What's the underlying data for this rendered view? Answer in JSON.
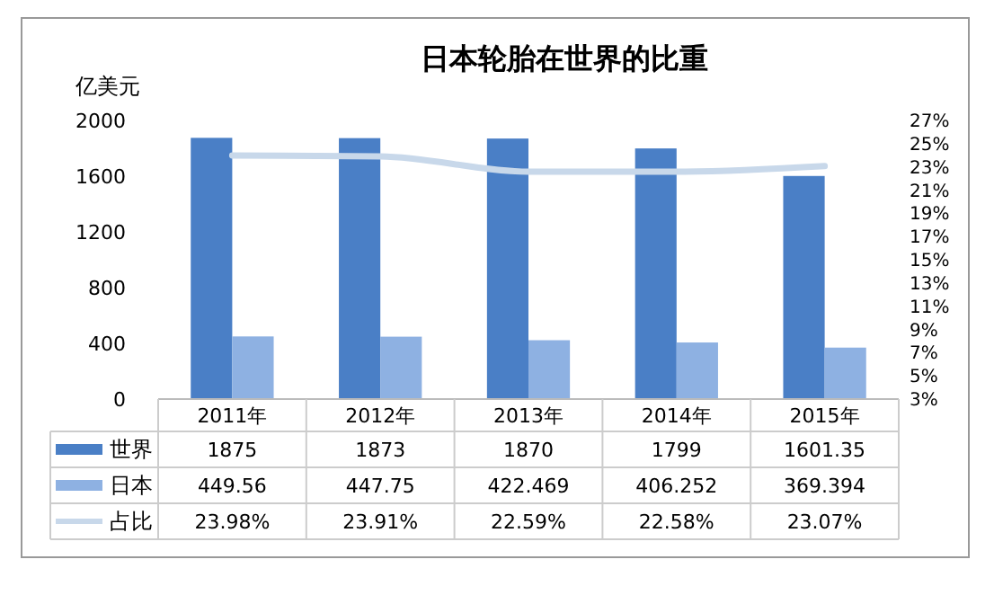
{
  "chart_data": {
    "type": "bar",
    "title": "日本轮胎在世界的比重",
    "ylabel": "亿美元",
    "categories": [
      "2011年",
      "2012年",
      "2013年",
      "2014年",
      "2015年"
    ],
    "series": [
      {
        "name": "世界",
        "color": "#4a7fc6",
        "values": [
          1875,
          1873,
          1870,
          1799,
          1601.35
        ],
        "value_labels": [
          "1875",
          "1873",
          "1870",
          "1799",
          "1601.35"
        ]
      },
      {
        "name": "日本",
        "color": "#8eb1e2",
        "values": [
          449.56,
          447.75,
          422.469,
          406.252,
          369.394
        ],
        "value_labels": [
          "449.56",
          "447.75",
          "422.469",
          "406.252",
          "369.394"
        ]
      },
      {
        "name": "占比",
        "type": "line",
        "axis": "y2",
        "color": "#c8d8ea",
        "values": [
          23.98,
          23.91,
          22.59,
          22.58,
          23.07
        ],
        "value_labels": [
          "23.98%",
          "23.91%",
          "22.59%",
          "22.58%",
          "23.07%"
        ]
      }
    ],
    "ylim": [
      0,
      2000
    ],
    "yticks": [
      0,
      400,
      800,
      1200,
      1600,
      2000
    ],
    "y2lim": [
      3,
      27
    ],
    "y2ticks": [
      {
        "value": 3,
        "label": "3%"
      },
      {
        "value": 5,
        "label": "5%"
      },
      {
        "value": 7,
        "label": "7%"
      },
      {
        "value": 9,
        "label": "9%"
      },
      {
        "value": 11,
        "label": "11%"
      },
      {
        "value": 13,
        "label": "13%"
      },
      {
        "value": 15,
        "label": "15%"
      },
      {
        "value": 17,
        "label": "17%"
      },
      {
        "value": 19,
        "label": "19%"
      },
      {
        "value": 21,
        "label": "21%"
      },
      {
        "value": 23,
        "label": "23%"
      },
      {
        "value": 25,
        "label": "25%"
      },
      {
        "value": 27,
        "label": "27%"
      }
    ],
    "grid": false,
    "legend": "bottom left"
  }
}
